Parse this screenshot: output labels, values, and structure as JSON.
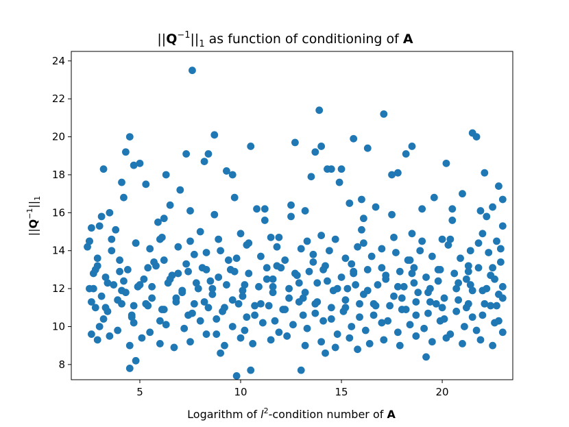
{
  "chart_data": {
    "type": "scatter",
    "title_parts": [
      "||",
      "Q",
      "−1",
      "||",
      "1",
      " as function of conditioning of ",
      "A"
    ],
    "xlabel_parts": [
      "Logarithm of ",
      "l",
      "2",
      "-condition number of ",
      "A"
    ],
    "ylabel_parts": [
      "||",
      "Q",
      "−1",
      "||",
      "1"
    ],
    "xlim": [
      1.6,
      23.5
    ],
    "ylim": [
      7.2,
      24.5
    ],
    "xticks": [
      5,
      10,
      15,
      20
    ],
    "yticks": [
      8,
      10,
      12,
      14,
      16,
      18,
      20,
      22,
      24
    ],
    "xtick_labels": [
      "5",
      "10",
      "15",
      "20"
    ],
    "ytick_labels": [
      "8",
      "10",
      "12",
      "14",
      "16",
      "18",
      "20",
      "22",
      "24"
    ],
    "grid": false,
    "legend": "none",
    "marker_color": "#1f77b4",
    "points": {
      "x": [
        7.6,
        13.9,
        17.1,
        4.5,
        8.7,
        21.5,
        21.7,
        4.3,
        7.3,
        8.4,
        10.5,
        12.7,
        14.0,
        15.6,
        16.3,
        18.2,
        18.5,
        13.7,
        4.1,
        5.0,
        8.2,
        14.5,
        15.0,
        20.2,
        2.5,
        3.2,
        4.7,
        6.3,
        9.3,
        9.6,
        13.5,
        14.3,
        14.9,
        17.5,
        17.8,
        21.0,
        22.1,
        22.8,
        3.0,
        3.5,
        4.2,
        5.3,
        5.9,
        6.5,
        7.0,
        7.5,
        9.7,
        10.8,
        11.2,
        12.5,
        13.2,
        15.4,
        16.0,
        16.7,
        19.0,
        19.6,
        20.5,
        21.9,
        22.5,
        23.0,
        2.6,
        3.8,
        6.0,
        8.0,
        10.0,
        11.5,
        14.0,
        16.0,
        18.5,
        20.0,
        22.0,
        23.0,
        2.4,
        2.9,
        3.6,
        4.0,
        4.8,
        5.5,
        6.2,
        6.9,
        7.7,
        8.3,
        9.0,
        9.8,
        10.3,
        11.0,
        11.8,
        12.2,
        13.0,
        13.6,
        14.4,
        15.2,
        15.8,
        16.5,
        17.0,
        17.7,
        18.3,
        18.9,
        19.5,
        20.3,
        20.9,
        21.4,
        22.3,
        22.9,
        2.7,
        3.3,
        4.4,
        5.2,
        5.8,
        6.6,
        7.4,
        8.1,
        8.9,
        9.5,
        10.4,
        11.3,
        12.0,
        12.8,
        13.4,
        14.2,
        15.0,
        15.6,
        16.3,
        17.2,
        17.9,
        18.6,
        19.2,
        19.8,
        20.6,
        21.2,
        21.8,
        22.4,
        2.5,
        3.1,
        3.7,
        4.3,
        4.9,
        5.6,
        6.4,
        7.1,
        7.9,
        8.6,
        9.3,
        10.1,
        10.9,
        11.6,
        12.4,
        13.1,
        13.8,
        14.6,
        15.3,
        16.1,
        16.8,
        17.6,
        18.1,
        18.8,
        19.4,
        20.1,
        20.8,
        21.5,
        22.2,
        22.8,
        2.8,
        3.4,
        4.1,
        4.6,
        5.4,
        6.1,
        6.8,
        7.6,
        8.4,
        9.1,
        9.9,
        10.7,
        11.4,
        12.1,
        12.9,
        13.7,
        14.5,
        15.1,
        15.9,
        16.6,
        17.4,
        18.0,
        18.7,
        19.3,
        20.0,
        20.7,
        21.3,
        22.0,
        22.7,
        2.6,
        3.0,
        3.9,
        4.7,
        5.5,
        6.3,
        7.2,
        8.0,
        8.8,
        9.6,
        10.2,
        11.1,
        11.9,
        12.6,
        13.3,
        14.1,
        14.8,
        15.5,
        16.2,
        17.0,
        17.8,
        18.4,
        19.1,
        19.9,
        20.4,
        21.1,
        21.7,
        22.6,
        23.0,
        2.9,
        3.5,
        4.5,
        5.1,
        6.0,
        6.7,
        7.5,
        8.3,
        9.2,
        10.0,
        10.6,
        11.5,
        12.3,
        13.2,
        14.0,
        14.7,
        15.4,
        16.4,
        17.1,
        17.9,
        18.7,
        19.5,
        20.2,
        21.0,
        21.9,
        22.5,
        4.5,
        9.8,
        10.5,
        13.0,
        4.8,
        9.0,
        14.2,
        15.8,
        19.2,
        3.1,
        6.2,
        8.7,
        11.2,
        12.5,
        16.1,
        17.5,
        20.5,
        22.2,
        2.9,
        5.7,
        7.3,
        9.4,
        11.8,
        13.6,
        15.5,
        18.4,
        21.3,
        22.9,
        3.4,
        4.2,
        5.0,
        6.5,
        7.8,
        8.5,
        10.2,
        11.6,
        12.9,
        14.3,
        15.7,
        17.2,
        18.6,
        19.8,
        21.4,
        22.6,
        2.6,
        3.9,
        5.3,
        6.8,
        8.2,
        9.6,
        11.0,
        12.4,
        13.8,
        15.2,
        16.6,
        18.0,
        19.4,
        20.8,
        22.1,
        23.0,
        3.2,
        4.6,
        6.0,
        7.4,
        8.8,
        10.3,
        11.7,
        13.1,
        14.5,
        15.9,
        17.3,
        18.7,
        20.1,
        21.5,
        22.8,
        2.5,
        3.6,
        4.8,
        6.1,
        7.5,
        8.9,
        10.4,
        11.9,
        13.3,
        14.7,
        16.1,
        17.6,
        19.0,
        20.4,
        21.8,
        22.7,
        2.8,
        4.0,
        5.4,
        6.9,
        8.3,
        9.7,
        11.3,
        12.7,
        14.1,
        15.6,
        17.0,
        18.5,
        19.9,
        21.3,
        22.5,
        3.3,
        4.7,
        6.2,
        7.7,
        9.2,
        10.7,
        12.2,
        13.7,
        15.2,
        16.7,
        18.2,
        19.7,
        21.2,
        22.4,
        2.7,
        4.1,
        5.6,
        7.1,
        8.6,
        10.1,
        11.6,
        13.2,
        14.8,
        16.3,
        17.8,
        19.3,
        20.7,
        22.0,
        23.0
      ],
      "y": [
        23.5,
        21.4,
        21.2,
        20.0,
        20.1,
        20.2,
        20.0,
        19.2,
        19.1,
        19.1,
        19.5,
        19.7,
        19.5,
        19.9,
        19.4,
        19.1,
        19.5,
        19.2,
        17.6,
        18.6,
        18.7,
        18.3,
        18.3,
        18.6,
        14.5,
        18.3,
        18.5,
        18.0,
        18.2,
        18.0,
        17.9,
        18.3,
        17.6,
        18.0,
        18.1,
        17.0,
        18.1,
        17.4,
        15.3,
        16.0,
        16.8,
        17.5,
        15.5,
        16.4,
        17.2,
        16.1,
        16.8,
        16.2,
        16.2,
        16.4,
        16.1,
        16.5,
        16.7,
        16.3,
        16.2,
        16.8,
        16.2,
        16.1,
        16.3,
        16.7,
        15.2,
        15.1,
        14.6,
        15.0,
        14.9,
        14.7,
        14.8,
        15.1,
        14.9,
        14.6,
        14.9,
        15.3,
        14.2,
        13.6,
        14.0,
        13.5,
        14.4,
        14.1,
        13.5,
        14.2,
        13.8,
        13.9,
        14.0,
        13.6,
        14.3,
        13.7,
        14.2,
        13.5,
        14.1,
        13.8,
        14.0,
        13.6,
        14.2,
        13.7,
        14.1,
        13.9,
        13.5,
        14.0,
        13.7,
        14.3,
        13.6,
        14.0,
        13.9,
        14.1,
        12.8,
        12.6,
        13.0,
        12.5,
        13.2,
        12.7,
        12.9,
        13.1,
        12.6,
        13.0,
        12.8,
        12.5,
        13.1,
        12.7,
        12.9,
        13.2,
        12.6,
        12.8,
        13.0,
        12.7,
        12.9,
        13.1,
        12.6,
        13.0,
        12.8,
        12.5,
        13.1,
        12.7,
        12.0,
        11.6,
        12.2,
        11.8,
        12.1,
        11.5,
        12.3,
        11.9,
        12.0,
        11.7,
        12.2,
        11.6,
        12.1,
        11.8,
        12.0,
        11.5,
        12.3,
        11.9,
        12.0,
        11.7,
        12.2,
        11.6,
        12.1,
        11.8,
        12.0,
        11.5,
        12.3,
        11.9,
        12.0,
        11.7,
        11.0,
        10.8,
        11.2,
        10.6,
        11.1,
        10.9,
        11.3,
        10.7,
        11.0,
        10.8,
        11.2,
        10.6,
        11.1,
        10.9,
        11.3,
        10.7,
        11.0,
        10.8,
        11.2,
        10.6,
        11.1,
        10.9,
        11.3,
        10.7,
        11.0,
        10.8,
        11.2,
        10.6,
        11.1,
        9.6,
        10.0,
        9.8,
        10.2,
        9.7,
        10.1,
        9.9,
        10.3,
        9.6,
        10.0,
        9.8,
        10.2,
        9.7,
        10.1,
        9.9,
        10.3,
        9.6,
        10.0,
        9.8,
        10.2,
        9.7,
        10.1,
        9.9,
        10.3,
        9.6,
        10.0,
        9.8,
        10.2,
        9.7,
        9.3,
        9.5,
        9.0,
        9.4,
        9.1,
        8.9,
        9.2,
        9.6,
        9.0,
        9.4,
        9.1,
        9.3,
        9.5,
        9.0,
        9.2,
        8.9,
        9.4,
        9.1,
        9.3,
        9.0,
        9.5,
        9.2,
        9.4,
        9.1,
        9.3,
        9.0,
        7.8,
        7.4,
        7.7,
        7.7,
        8.2,
        8.6,
        8.6,
        8.8,
        8.4,
        15.8,
        15.7,
        15.9,
        15.6,
        15.8,
        15.7,
        15.9,
        15.6,
        15.8,
        13.2,
        13.4,
        13.3,
        13.5,
        13.2,
        13.4,
        13.3,
        13.5,
        13.2,
        13.4,
        12.3,
        12.4,
        12.2,
        12.5,
        12.3,
        12.4,
        12.2,
        12.5,
        12.3,
        12.4,
        12.2,
        12.5,
        12.3,
        12.4,
        12.2,
        12.5,
        11.3,
        11.4,
        11.2,
        11.5,
        11.3,
        11.4,
        11.2,
        11.5,
        11.3,
        11.4,
        11.2,
        11.5,
        11.3,
        11.4,
        11.2,
        11.5,
        10.4,
        10.5,
        10.3,
        10.6,
        10.4,
        10.5,
        10.3,
        10.6,
        10.4,
        10.5,
        10.3,
        10.6,
        10.4,
        10.5,
        10.3,
        14.5,
        14.6,
        14.4,
        14.7,
        14.5,
        14.6,
        14.4,
        14.7,
        14.5,
        14.6,
        14.4,
        14.7,
        14.5,
        14.6,
        14.4,
        14.5,
        13.0,
        12.9,
        13.1,
        12.8,
        13.0,
        12.9,
        13.1,
        12.8,
        13.0,
        12.9,
        13.1,
        12.8,
        13.0,
        12.9,
        13.1,
        11.0,
        11.1,
        10.9,
        11.2,
        11.0,
        11.1,
        10.9,
        11.2,
        11.0,
        11.1,
        10.9,
        11.2,
        11.0,
        11.1,
        12.0,
        11.9,
        12.1,
        11.8,
        12.0,
        11.9,
        12.1,
        11.8,
        12.0,
        11.9,
        12.1,
        11.8,
        12.0,
        11.9,
        12.1
      ]
    }
  }
}
